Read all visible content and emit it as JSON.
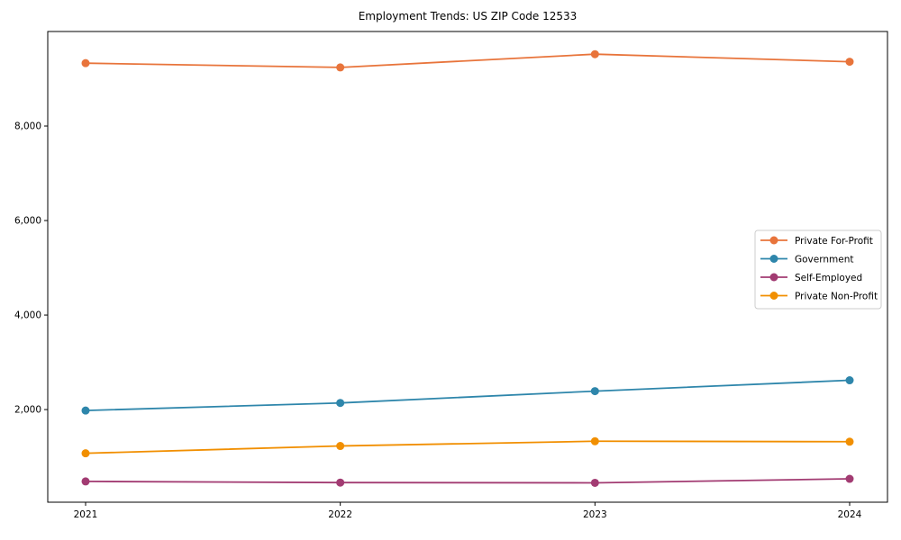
{
  "chart_data": {
    "type": "line",
    "title": "Employment Trends: US ZIP Code 12533",
    "xlabel": "",
    "ylabel": "",
    "x_tick_labels": [
      "2021",
      "2022",
      "2023",
      "2024"
    ],
    "x_values": [
      2021,
      2022,
      2023,
      2024
    ],
    "series": [
      {
        "name": "Private For-Profit",
        "color": "#E8743B",
        "values": [
          9330,
          9240,
          9520,
          9360
        ]
      },
      {
        "name": "Government",
        "color": "#2E86AB",
        "values": [
          1980,
          2140,
          2390,
          2620
        ]
      },
      {
        "name": "Self-Employed",
        "color": "#A23B72",
        "values": [
          480,
          455,
          450,
          535
        ]
      },
      {
        "name": "Private Non-Profit",
        "color": "#F18F01",
        "values": [
          1075,
          1230,
          1330,
          1320
        ]
      }
    ],
    "y_ticks": [
      2000,
      4000,
      6000,
      8000
    ],
    "y_tick_labels": [
      "2,000",
      "4,000",
      "6,000",
      "8,000"
    ],
    "ylim": [
      40,
      10000
    ],
    "grid": false,
    "legend_position": "center right",
    "marker": "circle",
    "frame_color": "#000000",
    "legend_border_color": "#cccccc",
    "legend_background": "#ffffff"
  }
}
